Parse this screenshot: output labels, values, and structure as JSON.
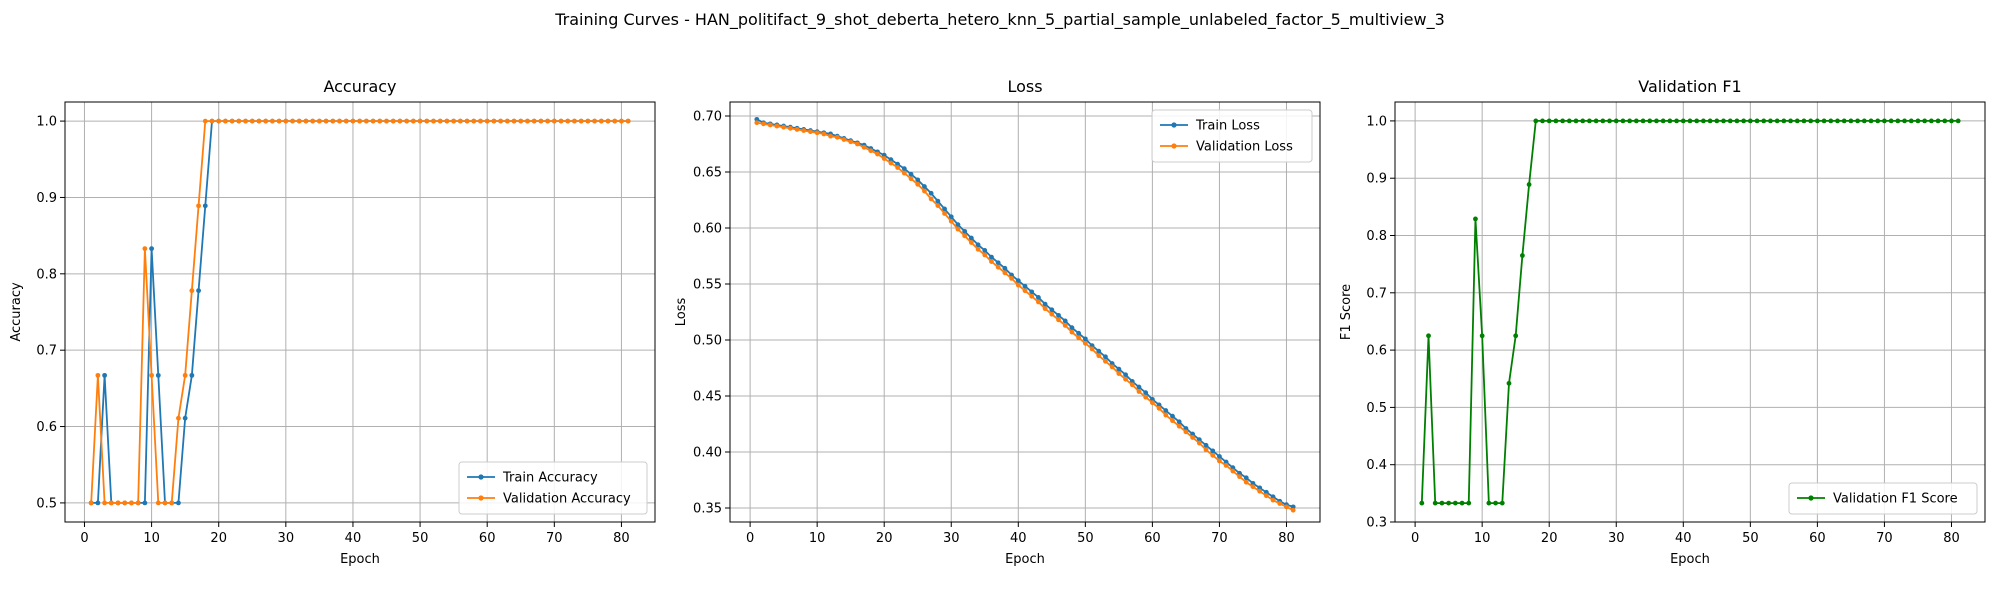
{
  "figure": {
    "suptitle": "Training Curves - HAN_politifact_9_shot_deberta_hetero_knn_5_partial_sample_unlabeled_factor_5_multiview_3"
  },
  "colors": {
    "train": "#1f77b4",
    "validation": "#ff7f0e",
    "f1": "#008000",
    "grid": "#b0b0b0"
  },
  "chart_data": [
    {
      "type": "line",
      "title": "Accuracy",
      "xlabel": "Epoch",
      "ylabel": "Accuracy",
      "xlim": [
        -2.9,
        85.0
      ],
      "ylim": [
        0.475,
        1.025
      ],
      "xticks": [
        0,
        10,
        20,
        30,
        40,
        50,
        60,
        70,
        80
      ],
      "yticks": [
        "0.5",
        "0.6",
        "0.7",
        "0.8",
        "0.9",
        "1.0"
      ],
      "grid": true,
      "legend": "lower-right",
      "x_start": 1,
      "series": [
        {
          "name": "Train Accuracy",
          "color": "#1f77b4",
          "values": [
            0.5,
            0.5,
            0.667,
            0.5,
            0.5,
            0.5,
            0.5,
            0.5,
            0.5,
            0.833,
            0.667,
            0.5,
            0.5,
            0.5,
            0.611,
            0.667,
            0.778,
            0.889,
            1.0,
            1.0,
            1.0,
            1.0,
            1.0,
            1.0,
            1.0,
            1.0,
            1.0,
            1.0,
            1.0,
            1.0,
            1.0,
            1.0,
            1.0,
            1.0,
            1.0,
            1.0,
            1.0,
            1.0,
            1.0,
            1.0,
            1.0,
            1.0,
            1.0,
            1.0,
            1.0,
            1.0,
            1.0,
            1.0,
            1.0,
            1.0,
            1.0,
            1.0,
            1.0,
            1.0,
            1.0,
            1.0,
            1.0,
            1.0,
            1.0,
            1.0,
            1.0,
            1.0,
            1.0,
            1.0,
            1.0,
            1.0,
            1.0,
            1.0,
            1.0,
            1.0,
            1.0,
            1.0,
            1.0,
            1.0,
            1.0,
            1.0,
            1.0,
            1.0,
            1.0,
            1.0,
            1.0
          ]
        },
        {
          "name": "Validation Accuracy",
          "color": "#ff7f0e",
          "values": [
            0.5,
            0.667,
            0.5,
            0.5,
            0.5,
            0.5,
            0.5,
            0.5,
            0.833,
            0.667,
            0.5,
            0.5,
            0.5,
            0.611,
            0.667,
            0.778,
            0.889,
            1.0,
            1.0,
            1.0,
            1.0,
            1.0,
            1.0,
            1.0,
            1.0,
            1.0,
            1.0,
            1.0,
            1.0,
            1.0,
            1.0,
            1.0,
            1.0,
            1.0,
            1.0,
            1.0,
            1.0,
            1.0,
            1.0,
            1.0,
            1.0,
            1.0,
            1.0,
            1.0,
            1.0,
            1.0,
            1.0,
            1.0,
            1.0,
            1.0,
            1.0,
            1.0,
            1.0,
            1.0,
            1.0,
            1.0,
            1.0,
            1.0,
            1.0,
            1.0,
            1.0,
            1.0,
            1.0,
            1.0,
            1.0,
            1.0,
            1.0,
            1.0,
            1.0,
            1.0,
            1.0,
            1.0,
            1.0,
            1.0,
            1.0,
            1.0,
            1.0,
            1.0,
            1.0,
            1.0,
            1.0
          ]
        }
      ]
    },
    {
      "type": "line",
      "title": "Loss",
      "xlabel": "Epoch",
      "ylabel": "Loss",
      "xlim": [
        -3.0,
        85.0
      ],
      "ylim": [
        0.3375,
        0.7125
      ],
      "xticks": [
        0,
        10,
        20,
        30,
        40,
        50,
        60,
        70,
        80
      ],
      "yticks": [
        "0.35",
        "0.40",
        "0.45",
        "0.50",
        "0.55",
        "0.60",
        "0.65",
        "0.70"
      ],
      "grid": true,
      "legend": "top-right",
      "x_start": 1,
      "series": [
        {
          "name": "Train Loss",
          "color": "#1f77b4",
          "values": [
            0.697,
            0.694,
            0.693,
            0.692,
            0.691,
            0.69,
            0.689,
            0.688,
            0.687,
            0.686,
            0.685,
            0.684,
            0.682,
            0.68,
            0.678,
            0.676,
            0.674,
            0.671,
            0.668,
            0.665,
            0.661,
            0.657,
            0.653,
            0.648,
            0.643,
            0.637,
            0.631,
            0.624,
            0.617,
            0.61,
            0.603,
            0.597,
            0.591,
            0.585,
            0.58,
            0.574,
            0.569,
            0.564,
            0.558,
            0.553,
            0.548,
            0.543,
            0.538,
            0.532,
            0.527,
            0.522,
            0.517,
            0.511,
            0.506,
            0.501,
            0.495,
            0.49,
            0.485,
            0.479,
            0.474,
            0.469,
            0.463,
            0.458,
            0.453,
            0.447,
            0.442,
            0.437,
            0.432,
            0.427,
            0.421,
            0.416,
            0.411,
            0.406,
            0.401,
            0.396,
            0.391,
            0.386,
            0.381,
            0.377,
            0.372,
            0.368,
            0.364,
            0.36,
            0.356,
            0.353,
            0.351
          ]
        },
        {
          "name": "Validation Loss",
          "color": "#ff7f0e",
          "values": [
            0.694,
            0.693,
            0.692,
            0.691,
            0.69,
            0.689,
            0.688,
            0.687,
            0.686,
            0.685,
            0.684,
            0.682,
            0.681,
            0.679,
            0.677,
            0.675,
            0.672,
            0.669,
            0.666,
            0.662,
            0.658,
            0.654,
            0.649,
            0.644,
            0.639,
            0.633,
            0.626,
            0.62,
            0.613,
            0.606,
            0.599,
            0.593,
            0.587,
            0.581,
            0.576,
            0.57,
            0.565,
            0.56,
            0.555,
            0.549,
            0.544,
            0.539,
            0.534,
            0.528,
            0.523,
            0.518,
            0.513,
            0.507,
            0.502,
            0.497,
            0.492,
            0.486,
            0.481,
            0.476,
            0.47,
            0.465,
            0.46,
            0.454,
            0.449,
            0.444,
            0.439,
            0.433,
            0.428,
            0.423,
            0.418,
            0.413,
            0.408,
            0.402,
            0.397,
            0.392,
            0.388,
            0.383,
            0.378,
            0.373,
            0.369,
            0.365,
            0.361,
            0.357,
            0.354,
            0.351,
            0.348
          ]
        }
      ]
    },
    {
      "type": "line",
      "title": "Validation F1",
      "xlabel": "Epoch",
      "ylabel": "F1 Score",
      "xlim": [
        -3.0,
        85.0
      ],
      "ylim": [
        0.3,
        1.033
      ],
      "xticks": [
        0,
        10,
        20,
        30,
        40,
        50,
        60,
        70,
        80
      ],
      "yticks": [
        "0.3",
        "0.4",
        "0.5",
        "0.6",
        "0.7",
        "0.8",
        "0.9",
        "1.0"
      ],
      "grid": true,
      "legend": "lower-right",
      "x_start": 1,
      "series": [
        {
          "name": "Validation F1 Score",
          "color": "#008000",
          "values": [
            0.333,
            0.625,
            0.333,
            0.333,
            0.333,
            0.333,
            0.333,
            0.333,
            0.829,
            0.625,
            0.333,
            0.333,
            0.333,
            0.542,
            0.625,
            0.765,
            0.889,
            1.0,
            1.0,
            1.0,
            1.0,
            1.0,
            1.0,
            1.0,
            1.0,
            1.0,
            1.0,
            1.0,
            1.0,
            1.0,
            1.0,
            1.0,
            1.0,
            1.0,
            1.0,
            1.0,
            1.0,
            1.0,
            1.0,
            1.0,
            1.0,
            1.0,
            1.0,
            1.0,
            1.0,
            1.0,
            1.0,
            1.0,
            1.0,
            1.0,
            1.0,
            1.0,
            1.0,
            1.0,
            1.0,
            1.0,
            1.0,
            1.0,
            1.0,
            1.0,
            1.0,
            1.0,
            1.0,
            1.0,
            1.0,
            1.0,
            1.0,
            1.0,
            1.0,
            1.0,
            1.0,
            1.0,
            1.0,
            1.0,
            1.0,
            1.0,
            1.0,
            1.0,
            1.0,
            1.0,
            1.0
          ]
        }
      ]
    }
  ]
}
